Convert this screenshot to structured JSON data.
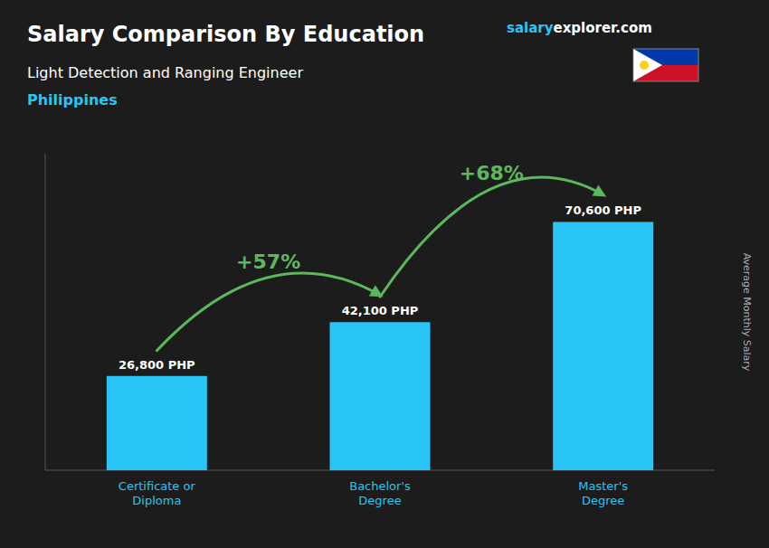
{
  "chart_data": {
    "type": "bar",
    "title": "Salary Comparison By Education",
    "subtitle": "Light Detection and Ranging Engineer",
    "annotations": [
      "Philippines",
      "salary",
      "explorer.com",
      "+57%",
      "+68%"
    ],
    "ylabel": "Average Monthly Salary",
    "categories": [
      "Certificate or\nDiploma",
      "Bachelor's\nDegree",
      "Master's\nDegree"
    ],
    "values": [
      26800,
      42100,
      70600
    ],
    "value_labels": [
      "26,800 PHP",
      "42,100 PHP",
      "70,600 PHP"
    ],
    "data_labels": true,
    "color": "#29c5f6",
    "ylim": [
      0,
      90000
    ],
    "tick_labels": "x",
    "grid": false
  }
}
